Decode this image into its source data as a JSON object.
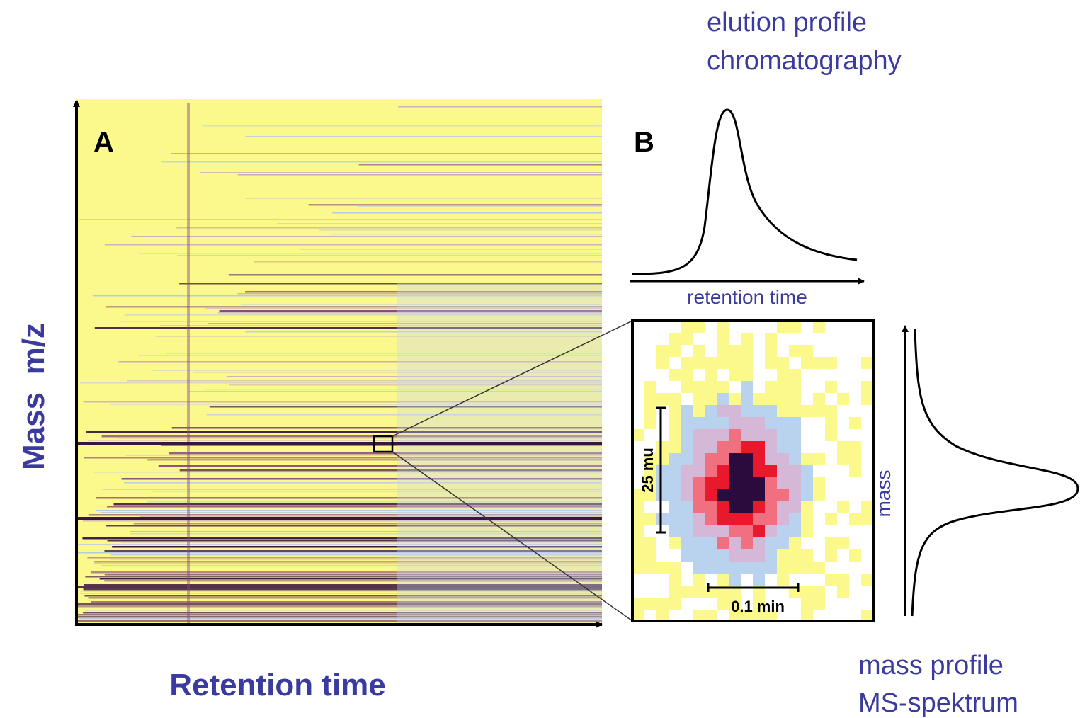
{
  "panel_a": {
    "label": "A",
    "y_axis_label": "Mass  m/z",
    "x_axis_label": "Retention time"
  },
  "panel_b": {
    "label": "B",
    "elution_profile": {
      "title": [
        "elution profile",
        "chromatography"
      ],
      "axis_label": "retention time"
    },
    "zoom": {
      "scale_y": "25 mu",
      "scale_x": "0.1 min"
    },
    "mass_profile": {
      "axis_label": "mass",
      "title": [
        "mass profile",
        "MS-spektrum"
      ]
    }
  }
}
